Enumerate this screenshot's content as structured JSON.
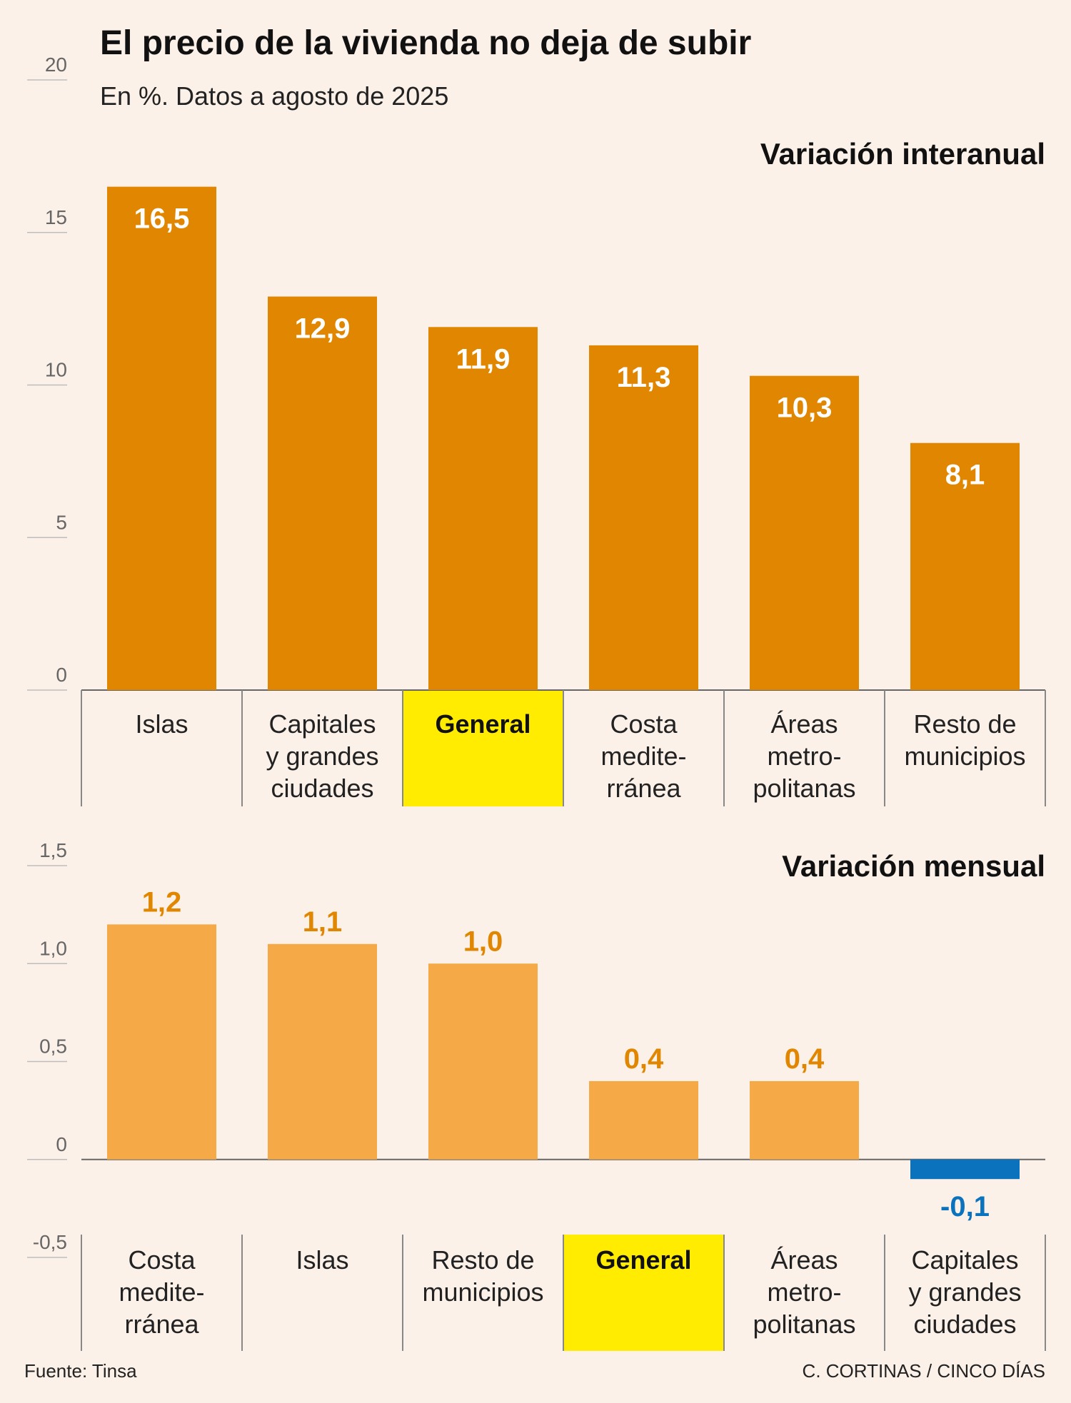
{
  "title": "El precio de la vivienda no deja de subir",
  "subtitle": "En %. Datos a agosto de 2025",
  "colors": {
    "annual_bar": "#e08600",
    "monthly_bar": "#f5a947",
    "negative_bar": "#0b72bd",
    "monthly_label": "#e08600",
    "negative_label": "#0b72bd",
    "highlight": "#ffec00",
    "background": "#fcf1e8"
  },
  "chart_data": [
    {
      "type": "bar",
      "title": "Variación interanual",
      "categories": [
        [
          "Islas"
        ],
        [
          "Capitales",
          "y grandes",
          "ciudades"
        ],
        [
          "General"
        ],
        [
          "Costa",
          "medite-",
          "rránea"
        ],
        [
          "Áreas",
          "metro-",
          "politanas"
        ],
        [
          "Resto de",
          "municipios"
        ]
      ],
      "values": [
        16.5,
        12.9,
        11.9,
        11.3,
        10.3,
        8.1
      ],
      "value_labels": [
        "16,5",
        "12,9",
        "11,9",
        "11,3",
        "10,3",
        "8,1"
      ],
      "highlight_index": 2,
      "yticks": [
        0,
        5,
        10,
        15,
        20
      ],
      "ytick_labels": [
        "0",
        "5",
        "10",
        "15",
        "20"
      ],
      "ylim": [
        0,
        20
      ],
      "xlabel": "",
      "ylabel": ""
    },
    {
      "type": "bar",
      "title": "Variación mensual",
      "categories": [
        [
          "Costa",
          "medite-",
          "rránea"
        ],
        [
          "Islas"
        ],
        [
          "Resto de",
          "municipios"
        ],
        [
          "General"
        ],
        [
          "Áreas",
          "metro-",
          "politanas"
        ],
        [
          "Capitales",
          "y grandes",
          "ciudades"
        ]
      ],
      "values": [
        1.2,
        1.1,
        1.0,
        0.4,
        0.4,
        -0.1
      ],
      "value_labels": [
        "1,2",
        "1,1",
        "1,0",
        "0,4",
        "0,4",
        "-0,1"
      ],
      "highlight_index": 3,
      "yticks": [
        -0.5,
        0,
        0.5,
        1.0,
        1.5
      ],
      "ytick_labels": [
        "-0,5",
        "0",
        "0,5",
        "1,0",
        "1,5"
      ],
      "ylim": [
        -0.5,
        1.5
      ],
      "xlabel": "",
      "ylabel": ""
    }
  ],
  "footer": {
    "source": "Fuente: Tinsa",
    "credit": "C. CORTINAS / CINCO DÍAS"
  }
}
